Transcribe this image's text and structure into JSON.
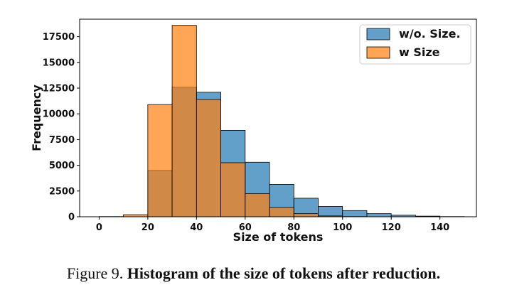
{
  "chart_data": {
    "type": "bar",
    "xlabel": "Size of tokens",
    "ylabel": "Frequency",
    "xlim": [
      -8,
      155
    ],
    "ylim": [
      0,
      19200
    ],
    "xticks": [
      0,
      20,
      40,
      60,
      80,
      100,
      120,
      140
    ],
    "yticks": [
      0,
      2500,
      5000,
      7500,
      10000,
      12500,
      15000,
      17500
    ],
    "bin_edges": [
      0,
      10,
      20,
      30,
      40,
      50,
      60,
      70,
      80,
      90,
      100,
      110,
      120,
      130,
      140,
      150
    ],
    "legend_position": "top-right",
    "series": [
      {
        "name": "w/o. Size.",
        "color": "#1f77b4",
        "values": [
          0,
          0,
          4500,
          12600,
          12100,
          8400,
          5300,
          3150,
          1800,
          1000,
          600,
          300,
          150,
          60,
          20
        ]
      },
      {
        "name": "w Size",
        "color": "#ff7f0e",
        "values": [
          20,
          200,
          10900,
          18600,
          11400,
          5250,
          2250,
          900,
          300,
          80,
          20,
          0,
          0,
          0,
          0
        ]
      }
    ]
  },
  "caption": {
    "label": "Figure 9.",
    "text": "Histogram of the size of tokens after reduction."
  }
}
